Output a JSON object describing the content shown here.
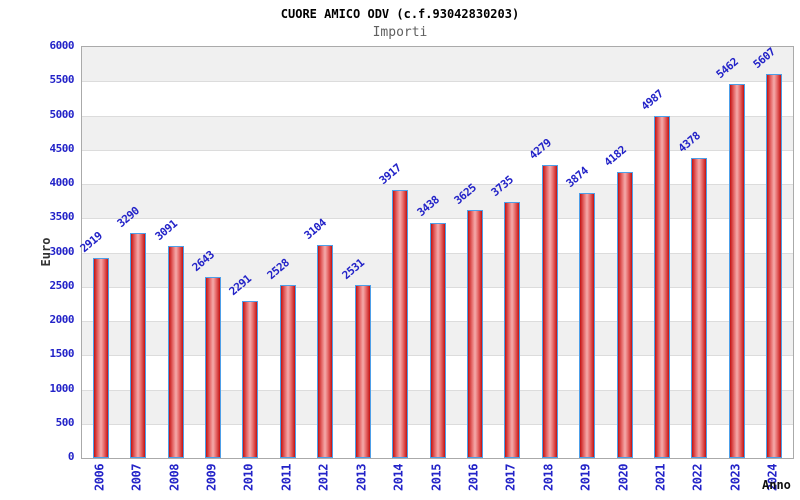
{
  "chart_data": {
    "type": "bar",
    "title": "CUORE AMICO ODV (c.f.93042830203)",
    "subtitle": "Importi",
    "xlabel": "Anno",
    "ylabel": "Euro",
    "categories": [
      "2006",
      "2007",
      "2008",
      "2009",
      "2010",
      "2011",
      "2012",
      "2013",
      "2014",
      "2015",
      "2016",
      "2017",
      "2018",
      "2019",
      "2020",
      "2021",
      "2022",
      "2023",
      "2024"
    ],
    "values": [
      2919,
      3290,
      3091,
      2643,
      2291,
      2528,
      3104,
      2531,
      3917,
      3438,
      3625,
      3735,
      4279,
      3874,
      4182,
      4987,
      4378,
      5462,
      5607
    ],
    "ylim": [
      0,
      6000
    ],
    "y_ticks": [
      0,
      500,
      1000,
      1500,
      2000,
      2500,
      3000,
      3500,
      4000,
      4500,
      5000,
      5500,
      6000
    ],
    "grid": "horizontal gridlines with alternating gray bands",
    "legend": "none",
    "bar_value_labels": true
  },
  "style": {
    "label_blue": "#2323c8",
    "title_color": "#000000",
    "subtitle_color": "#606060",
    "axis_title_color": "#333333",
    "bar_border": "#4d9fe8",
    "bar_edge_red": "#c41212",
    "bar_center_pink": "#f5abab",
    "band_gray": "#f0f0f0",
    "grid_color": "#dcdcdc",
    "plot_border": "#aaaaaa"
  }
}
